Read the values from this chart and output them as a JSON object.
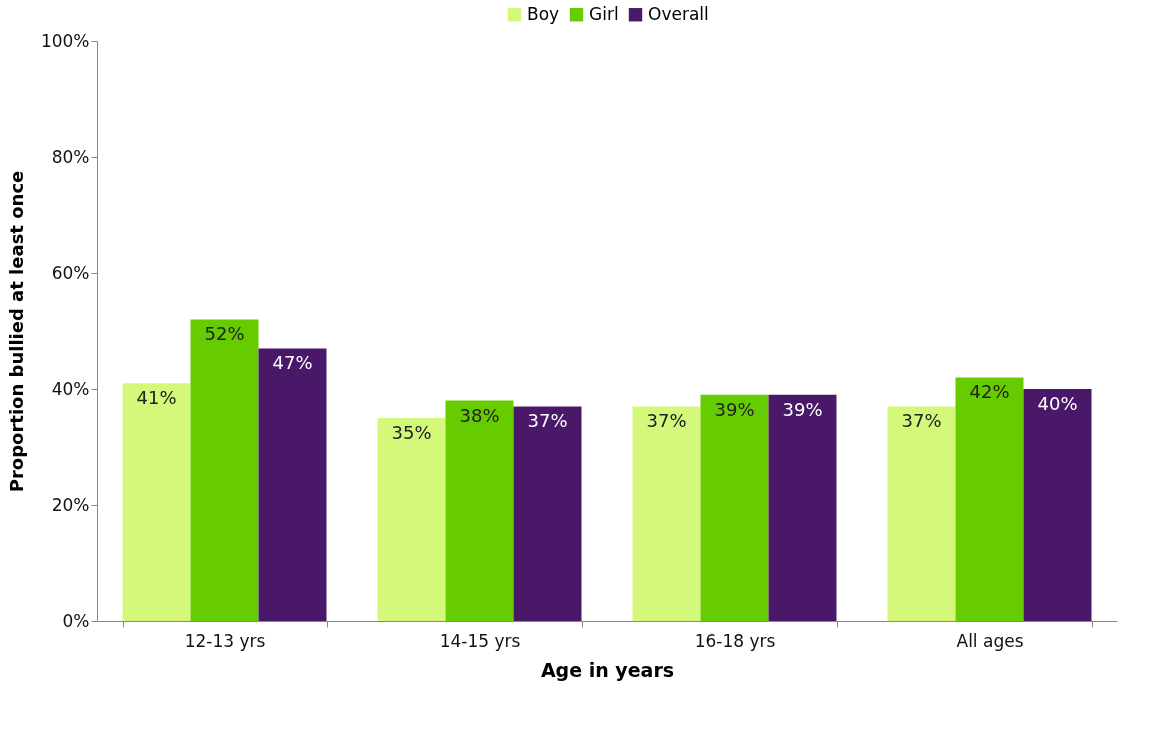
{
  "chart_data": {
    "type": "bar",
    "xlabel": "Age in years",
    "ylabel": "Proportion bullied at least once",
    "categories": [
      "12-13 yrs",
      "14-15 yrs",
      "16-18 yrs",
      "All ages"
    ],
    "series": [
      {
        "name": "Boy",
        "color": "#d4f87a",
        "values": [
          41,
          35,
          37,
          37
        ],
        "value_labels": [
          "41%",
          "35%",
          "37%",
          "37%"
        ]
      },
      {
        "name": "Girl",
        "color": "#66cc00",
        "values": [
          52,
          38,
          39,
          42
        ],
        "value_labels": [
          "52%",
          "38%",
          "39%",
          "42%"
        ]
      },
      {
        "name": "Overall",
        "color": "#4a1868",
        "values": [
          47,
          37,
          39,
          40
        ],
        "value_labels": [
          "47%",
          "37%",
          "39%",
          "40%"
        ]
      }
    ],
    "ylim": [
      0,
      100
    ],
    "yticks": [
      {
        "value": 0,
        "label": "0%"
      },
      {
        "value": 20,
        "label": "20%"
      },
      {
        "value": 40,
        "label": "40%"
      },
      {
        "value": 60,
        "label": "60%"
      },
      {
        "value": 80,
        "label": "80%"
      },
      {
        "value": 100,
        "label": "100%"
      }
    ],
    "grid": false,
    "legend": "top"
  }
}
